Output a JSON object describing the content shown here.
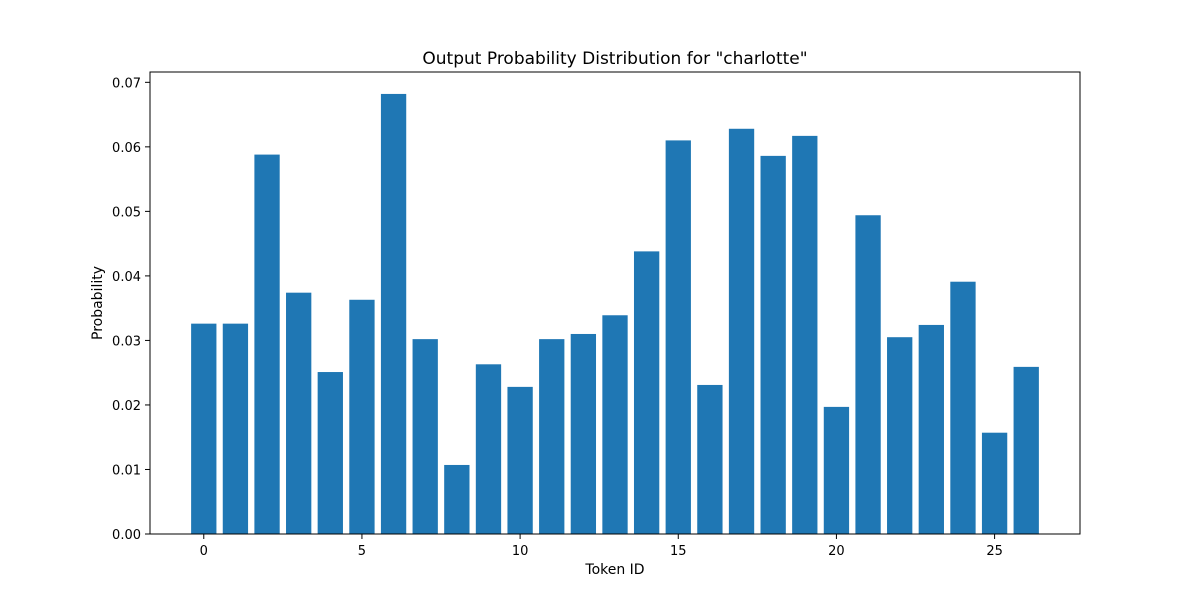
{
  "chart_data": {
    "type": "bar",
    "title": "Output Probability Distribution for \"charlotte\"",
    "xlabel": "Token ID",
    "ylabel": "Probability",
    "x": [
      0,
      1,
      2,
      3,
      4,
      5,
      6,
      7,
      8,
      9,
      10,
      11,
      12,
      13,
      14,
      15,
      16,
      17,
      18,
      19,
      20,
      21,
      22,
      23,
      24,
      25,
      26
    ],
    "values": [
      0.0326,
      0.0326,
      0.0588,
      0.0374,
      0.0251,
      0.0363,
      0.0682,
      0.0302,
      0.0107,
      0.0263,
      0.0228,
      0.0302,
      0.031,
      0.0339,
      0.0438,
      0.061,
      0.0231,
      0.0628,
      0.0586,
      0.0617,
      0.0197,
      0.0494,
      0.0305,
      0.0324,
      0.0391,
      0.0157,
      0.0259
    ],
    "xlim": [
      -1.7,
      27.7
    ],
    "ylim": [
      0,
      0.0716
    ],
    "x_ticks": [
      "0",
      "5",
      "10",
      "15",
      "20",
      "25"
    ],
    "y_ticks": [
      "0.00",
      "0.01",
      "0.02",
      "0.03",
      "0.04",
      "0.05",
      "0.06",
      "0.07"
    ],
    "grid": false,
    "bar_color": "#1f77b4"
  }
}
